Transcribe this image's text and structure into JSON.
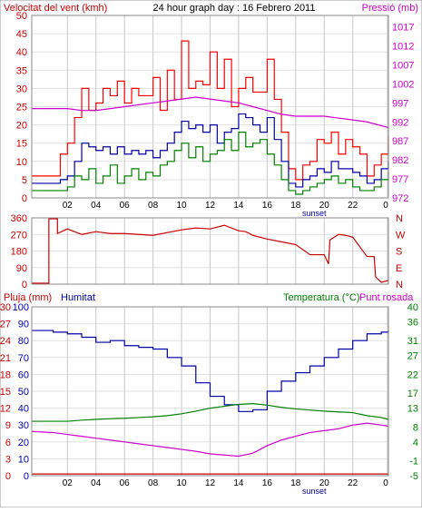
{
  "title": "24 hour graph day : 16 Febrero 2011",
  "colors": {
    "wind": "#ff0000",
    "gust": "#ff0000",
    "avgwind": "#0000aa",
    "minwind": "#008000",
    "pressure": "#cc00cc",
    "direction": "#cc0000",
    "rain": "#cc0000",
    "humidity": "#0000aa",
    "temperature": "#008000",
    "dewpoint": "#cc00cc",
    "grid": "#c8c8c8",
    "text": "#000000"
  },
  "chart_data": [
    {
      "type": "line",
      "name": "wind",
      "left_label": "Velocitat del vent (kmh)",
      "right_label": "Pressió (mb)",
      "x_ticks": [
        "02",
        "04",
        "06",
        "08",
        "10",
        "12",
        "14",
        "16",
        "18",
        "20",
        "22"
      ],
      "x_tick_hours": [
        1,
        3,
        5,
        7,
        9,
        11,
        13,
        15,
        17,
        19,
        21
      ],
      "x_end_tick": "0",
      "annotation": "sunset",
      "annotation_hour": 18.3,
      "xlim": [
        -1.5,
        23.5
      ],
      "ylim": [
        0,
        50
      ],
      "yticks": [
        0,
        5,
        10,
        15,
        20,
        25,
        30,
        35,
        40,
        45,
        50
      ],
      "y2lim": [
        972,
        1020
      ],
      "y2ticks": [
        972,
        977,
        982,
        987,
        992,
        997,
        1002,
        1007,
        1012,
        1017
      ],
      "series": [
        {
          "color_key": "gust",
          "x": [
            -1.5,
            0,
            0.5,
            1,
            1.5,
            2,
            2.5,
            3,
            3.5,
            4,
            4.5,
            5,
            5.5,
            6,
            6.5,
            7,
            7.5,
            8,
            8.5,
            9,
            9.5,
            10,
            10.5,
            11,
            11.5,
            12,
            12.5,
            13,
            13.5,
            14,
            14.5,
            15,
            15.5,
            16,
            16.5,
            17,
            17.5,
            18,
            18.5,
            19,
            19.5,
            20,
            20.5,
            21,
            21.5,
            22,
            22.5,
            23,
            23.5
          ],
          "y": [
            6,
            6,
            12,
            15,
            22,
            30,
            24,
            26,
            30,
            28,
            32,
            26,
            30,
            28,
            28,
            33,
            24,
            35,
            27,
            43,
            30,
            32,
            31,
            40,
            30,
            38,
            25,
            30,
            33,
            29,
            29,
            38,
            27,
            18,
            8,
            5,
            9,
            10,
            16,
            15,
            18,
            12,
            16,
            14,
            12,
            6,
            9,
            12,
            17
          ]
        },
        {
          "color_key": "avgwind",
          "x": [
            -1.5,
            0,
            0.5,
            1,
            1.5,
            2,
            2.5,
            3,
            3.5,
            4,
            4.5,
            5,
            5.5,
            6,
            6.5,
            7,
            7.5,
            8,
            8.5,
            9,
            9.5,
            10,
            10.5,
            11,
            11.5,
            12,
            12.5,
            13,
            13.5,
            14,
            14.5,
            15,
            15.5,
            16,
            16.5,
            17,
            17.5,
            18,
            18.5,
            19,
            19.5,
            20,
            20.5,
            21,
            21.5,
            22,
            22.5,
            23,
            23.5
          ],
          "y": [
            4,
            4,
            5,
            6,
            10,
            15,
            14,
            13,
            14,
            12,
            14,
            12,
            13,
            12,
            13,
            11,
            13,
            15,
            18,
            21,
            19,
            20,
            18,
            20,
            15,
            18,
            19,
            23,
            22,
            20,
            18,
            22,
            16,
            10,
            4,
            3,
            5,
            6,
            8,
            7,
            10,
            8,
            8,
            7,
            6,
            4,
            5,
            8,
            10
          ]
        },
        {
          "color_key": "minwind",
          "x": [
            -1.5,
            0,
            0.5,
            1,
            1.5,
            2,
            2.5,
            3,
            3.5,
            4,
            4.5,
            5,
            5.5,
            6,
            6.5,
            7,
            7.5,
            8,
            8.5,
            9,
            9.5,
            10,
            10.5,
            11,
            11.5,
            12,
            12.5,
            13,
            13.5,
            14,
            14.5,
            15,
            15.5,
            16,
            16.5,
            17,
            17.5,
            18,
            18.5,
            19,
            19.5,
            20,
            20.5,
            21,
            21.5,
            22,
            22.5,
            23,
            23.5
          ],
          "y": [
            2,
            2,
            2,
            3,
            6,
            5,
            8,
            4,
            6,
            9,
            4,
            6,
            8,
            5,
            7,
            6,
            9,
            10,
            13,
            15,
            11,
            14,
            10,
            12,
            13,
            16,
            13,
            18,
            14,
            15,
            16,
            12,
            9,
            5,
            2,
            1,
            2,
            3,
            4,
            5,
            6,
            4,
            5,
            3,
            2,
            2,
            3,
            5,
            7
          ]
        },
        {
          "color_key": "pressure",
          "axis": "right",
          "x": [
            -1.5,
            0,
            1,
            2,
            3,
            4,
            5,
            6,
            7,
            8,
            9,
            10,
            11,
            12,
            13,
            14,
            15,
            16,
            17,
            18,
            19,
            20,
            21,
            22,
            23,
            23.5
          ],
          "y": [
            995.5,
            995.5,
            995.5,
            995,
            995,
            995.5,
            996,
            996.5,
            997,
            997.5,
            998,
            998.5,
            998,
            997.5,
            997,
            996,
            995,
            994,
            993.5,
            993.5,
            993.5,
            993,
            992.5,
            992,
            991,
            990.5
          ]
        }
      ]
    },
    {
      "type": "line",
      "name": "direction",
      "left_label": "",
      "right_label": "",
      "x_tick_hours": [
        1,
        3,
        5,
        7,
        9,
        11,
        13,
        15,
        17,
        19,
        21
      ],
      "xlim": [
        -1.5,
        23.5
      ],
      "ylim": [
        0,
        360
      ],
      "yticks": [
        0,
        90,
        180,
        270,
        360
      ],
      "ytick_labels": [
        "0",
        "90",
        "180",
        "270",
        "360"
      ],
      "right_ticks": [
        "N",
        "W",
        "S",
        "E",
        "N"
      ],
      "series": [
        {
          "color_key": "direction",
          "x": [
            -1.5,
            -0.3,
            -0.3,
            0.3,
            0.3,
            1,
            2,
            3,
            4,
            5,
            6,
            7,
            8,
            9,
            10,
            11,
            12,
            13,
            13.5,
            14,
            15,
            16,
            17,
            18,
            19,
            19.3,
            19.4,
            20,
            20.5,
            21,
            22,
            22.5,
            22.6,
            23,
            23.5
          ],
          "y": [
            5,
            5,
            355,
            355,
            275,
            300,
            270,
            285,
            275,
            275,
            270,
            265,
            280,
            295,
            305,
            300,
            320,
            290,
            285,
            265,
            245,
            230,
            215,
            160,
            160,
            110,
            240,
            270,
            265,
            255,
            150,
            150,
            40,
            10,
            20
          ]
        }
      ]
    },
    {
      "type": "line",
      "name": "humidity-temperature",
      "rain_label": "Pluja (mm)",
      "humidity_label": "Humitat",
      "temp_label": "Temperatura (°C)",
      "dew_label": "Punt rosada",
      "x_ticks": [
        "02",
        "04",
        "06",
        "08",
        "10",
        "12",
        "14",
        "16",
        "18",
        "20",
        "22"
      ],
      "x_tick_hours": [
        1,
        3,
        5,
        7,
        9,
        11,
        13,
        15,
        17,
        19,
        21
      ],
      "x_end_tick": "0",
      "annotation": "sunset",
      "annotation_hour": 18.3,
      "xlim": [
        -1.5,
        23.5
      ],
      "rain_lim": [
        0,
        30
      ],
      "rain_ticks": [
        0,
        3,
        6,
        9,
        12,
        15,
        18,
        21,
        24,
        27,
        30
      ],
      "hum_lim": [
        0,
        100
      ],
      "hum_ticks": [
        0,
        10,
        20,
        30,
        40,
        50,
        60,
        70,
        80,
        90,
        100
      ],
      "temp_lim": [
        -5,
        40
      ],
      "temp_ticks": [
        -5,
        -1,
        4,
        8,
        13,
        17,
        22,
        27,
        31,
        36,
        40
      ],
      "series": [
        {
          "color_key": "humidity",
          "axis": "humidity",
          "x": [
            -1.5,
            0,
            1,
            2,
            3,
            4,
            5,
            6,
            7,
            8,
            9,
            10,
            11,
            12,
            13,
            14,
            15,
            16,
            17,
            18,
            19,
            20,
            21,
            22,
            23,
            23.5
          ],
          "y": [
            86,
            85,
            84,
            82,
            79,
            80,
            77,
            76,
            75,
            70,
            65,
            55,
            47,
            42,
            38,
            39,
            50,
            56,
            61,
            65,
            70,
            75,
            80,
            84,
            85,
            86
          ]
        },
        {
          "color_key": "temperature",
          "axis": "temperature",
          "x": [
            -1.5,
            0,
            1,
            2,
            3,
            4,
            5,
            6,
            7,
            8,
            9,
            10,
            11,
            12,
            13,
            14,
            15,
            16,
            17,
            18,
            19,
            20,
            21,
            22,
            23,
            23.5
          ],
          "y": [
            9.5,
            9.5,
            9.5,
            9.8,
            10,
            10.2,
            10.3,
            10.5,
            10.7,
            11,
            11.5,
            12.2,
            13,
            13.5,
            14,
            14.2,
            13.8,
            13.2,
            12.8,
            12.5,
            12.2,
            12,
            11.8,
            11,
            10.5,
            10
          ]
        },
        {
          "color_key": "dewpoint",
          "axis": "temperature",
          "x": [
            -1.5,
            0,
            1,
            2,
            3,
            4,
            5,
            6,
            7,
            8,
            9,
            10,
            11,
            12,
            13,
            14,
            15,
            16,
            17,
            18,
            19,
            20,
            21,
            22,
            23,
            23.5
          ],
          "y": [
            6.8,
            6.5,
            6.0,
            5.5,
            5.0,
            4.5,
            4.0,
            3.5,
            3.0,
            2.5,
            2.0,
            1.5,
            0.8,
            0.5,
            0.2,
            1.0,
            3.0,
            4.5,
            5.5,
            6.5,
            7.0,
            7.5,
            8.5,
            9.0,
            8.5,
            8.2
          ]
        },
        {
          "color_key": "rain",
          "axis": "rain",
          "x": [
            -1.5,
            23.5
          ],
          "y": [
            0.3,
            0.3
          ]
        }
      ]
    }
  ]
}
